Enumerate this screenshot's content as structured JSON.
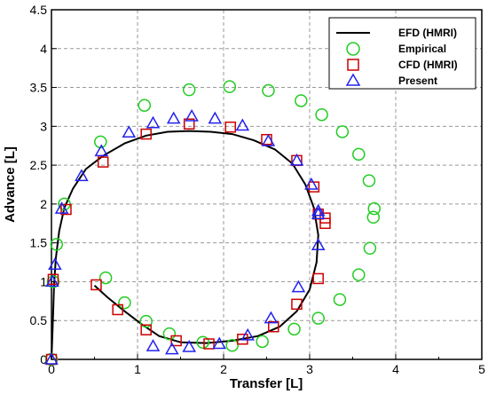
{
  "chart_data": {
    "type": "scatter",
    "title": "",
    "xlabel": "Transfer [L]",
    "ylabel": "Advance [L]",
    "xlim": [
      0,
      5
    ],
    "ylim": [
      0,
      4.5
    ],
    "x_ticks": [
      "0",
      "1",
      "2",
      "3",
      "4",
      "5"
    ],
    "y_ticks": [
      "0",
      "0.5",
      "1",
      "1.5",
      "2",
      "2.5",
      "3",
      "3.5",
      "4",
      "4.5"
    ],
    "grid": true,
    "legend_position": "top-right",
    "colors": {
      "efd": "#000000",
      "empirical": "#22cc22",
      "cfd": "#cc0000",
      "present": "#2222ee"
    },
    "series": [
      {
        "name": "EFD (HMRI)",
        "kind": "line",
        "points": [
          [
            0,
            0
          ],
          [
            0.01,
            0.3
          ],
          [
            0.02,
            0.6
          ],
          [
            0.03,
            0.95
          ],
          [
            0.05,
            1.3
          ],
          [
            0.09,
            1.65
          ],
          [
            0.15,
            1.95
          ],
          [
            0.25,
            2.2
          ],
          [
            0.4,
            2.45
          ],
          [
            0.6,
            2.62
          ],
          [
            0.85,
            2.78
          ],
          [
            1.1,
            2.88
          ],
          [
            1.35,
            2.93
          ],
          [
            1.6,
            2.94
          ],
          [
            1.85,
            2.93
          ],
          [
            2.1,
            2.9
          ],
          [
            2.35,
            2.82
          ],
          [
            2.6,
            2.7
          ],
          [
            2.8,
            2.52
          ],
          [
            2.95,
            2.25
          ],
          [
            3.05,
            1.95
          ],
          [
            3.1,
            1.6
          ],
          [
            3.08,
            1.25
          ],
          [
            3.0,
            0.9
          ],
          [
            2.85,
            0.62
          ],
          [
            2.65,
            0.42
          ],
          [
            2.4,
            0.3
          ],
          [
            2.1,
            0.24
          ],
          [
            1.8,
            0.21
          ],
          [
            1.5,
            0.22
          ],
          [
            1.25,
            0.3
          ],
          [
            1.05,
            0.45
          ],
          [
            0.85,
            0.62
          ],
          [
            0.65,
            0.8
          ],
          [
            0.5,
            0.95
          ]
        ]
      },
      {
        "name": "Empirical",
        "kind": "circle",
        "points": [
          [
            0,
            0
          ],
          [
            0.02,
            1.0
          ],
          [
            0.06,
            1.48
          ],
          [
            0.15,
            2.0
          ],
          [
            0.57,
            2.8
          ],
          [
            1.08,
            3.27
          ],
          [
            1.6,
            3.47
          ],
          [
            2.07,
            3.51
          ],
          [
            2.52,
            3.46
          ],
          [
            2.9,
            3.33
          ],
          [
            3.14,
            3.15
          ],
          [
            3.38,
            2.93
          ],
          [
            3.57,
            2.64
          ],
          [
            3.69,
            2.3
          ],
          [
            3.75,
            1.94
          ],
          [
            3.74,
            1.83
          ],
          [
            3.7,
            1.43
          ],
          [
            3.57,
            1.09
          ],
          [
            3.35,
            0.77
          ],
          [
            3.1,
            0.53
          ],
          [
            2.82,
            0.39
          ],
          [
            2.45,
            0.23
          ],
          [
            2.1,
            0.18
          ],
          [
            1.76,
            0.22
          ],
          [
            1.37,
            0.33
          ],
          [
            1.1,
            0.49
          ],
          [
            0.85,
            0.73
          ],
          [
            0.63,
            1.05
          ]
        ]
      },
      {
        "name": "CFD (HMRI)",
        "kind": "square",
        "points": [
          [
            0,
            0
          ],
          [
            0.02,
            1.03
          ],
          [
            0.17,
            1.93
          ],
          [
            0.6,
            2.54
          ],
          [
            1.1,
            2.9
          ],
          [
            1.6,
            3.03
          ],
          [
            2.08,
            2.99
          ],
          [
            2.5,
            2.83
          ],
          [
            2.85,
            2.56
          ],
          [
            3.05,
            2.22
          ],
          [
            3.1,
            1.87
          ],
          [
            3.18,
            1.82
          ],
          [
            3.18,
            1.75
          ],
          [
            3.1,
            1.04
          ],
          [
            2.85,
            0.71
          ],
          [
            2.58,
            0.42
          ],
          [
            2.22,
            0.26
          ],
          [
            1.83,
            0.2
          ],
          [
            1.45,
            0.24
          ],
          [
            1.1,
            0.38
          ],
          [
            0.77,
            0.64
          ],
          [
            0.52,
            0.96
          ]
        ]
      },
      {
        "name": "Present",
        "kind": "triangle",
        "points": [
          [
            0,
            0
          ],
          [
            0.01,
            1.0
          ],
          [
            0.04,
            1.22
          ],
          [
            0.12,
            1.94
          ],
          [
            0.35,
            2.36
          ],
          [
            0.58,
            2.68
          ],
          [
            0.9,
            2.92
          ],
          [
            1.18,
            3.04
          ],
          [
            1.42,
            3.1
          ],
          [
            1.63,
            3.13
          ],
          [
            1.9,
            3.1
          ],
          [
            2.22,
            3.01
          ],
          [
            2.52,
            2.81
          ],
          [
            2.85,
            2.56
          ],
          [
            3.02,
            2.25
          ],
          [
            3.1,
            1.91
          ],
          [
            3.1,
            1.87
          ],
          [
            3.1,
            1.47
          ],
          [
            2.87,
            0.93
          ],
          [
            2.55,
            0.53
          ],
          [
            2.28,
            0.31
          ],
          [
            1.95,
            0.2
          ],
          [
            1.6,
            0.16
          ],
          [
            1.4,
            0.13
          ],
          [
            1.18,
            0.17
          ]
        ]
      }
    ]
  }
}
